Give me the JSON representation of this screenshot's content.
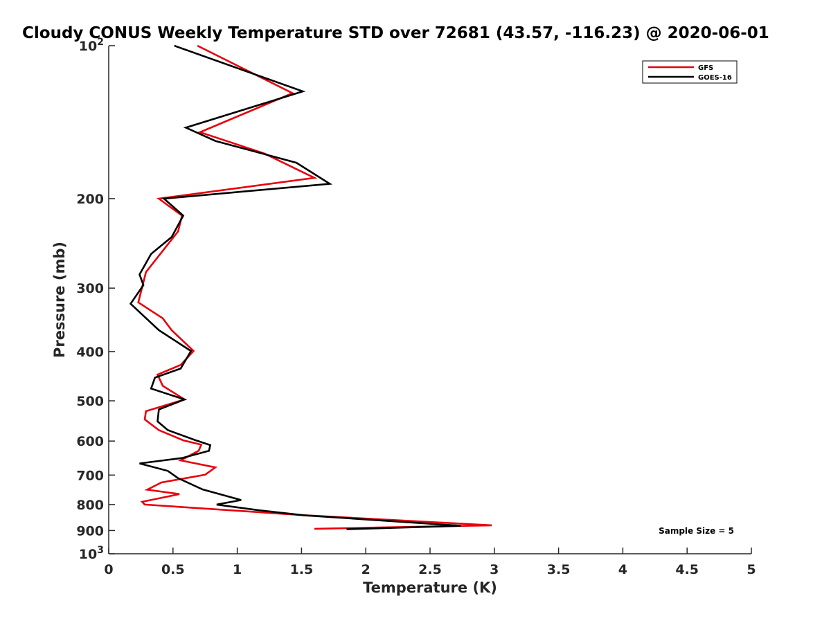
{
  "chart_data": {
    "type": "line",
    "title": "Cloudy CONUS Weekly Temperature STD over 72681 (43.57, -116.23) @ 2020-06-01",
    "xlabel": "Temperature (K)",
    "ylabel": "Pressure (mb)",
    "xlim": [
      0,
      5
    ],
    "ylim": [
      100,
      1000
    ],
    "y_scale": "log",
    "y_reversed": true,
    "x_ticks": [
      "0",
      "0.5",
      "1",
      "1.5",
      "2",
      "2.5",
      "3",
      "3.5",
      "4",
      "4.5",
      "5"
    ],
    "y_ticks": [
      {
        "value": 100,
        "base": "10",
        "exp": "2"
      },
      {
        "value": 200,
        "label": "200"
      },
      {
        "value": 300,
        "label": "300"
      },
      {
        "value": 400,
        "label": "400"
      },
      {
        "value": 500,
        "label": "500"
      },
      {
        "value": 600,
        "label": "600"
      },
      {
        "value": 700,
        "label": "700"
      },
      {
        "value": 800,
        "label": "800"
      },
      {
        "value": 900,
        "label": "900"
      },
      {
        "value": 1000,
        "base": "10",
        "exp": "3"
      }
    ],
    "grid": false,
    "legend_position": "top-right",
    "series": [
      {
        "name": "GFS",
        "color": "#e8000b",
        "points": [
          [
            0.69,
            100
          ],
          [
            1.43,
            124
          ],
          [
            0.71,
            148
          ],
          [
            1.21,
            163
          ],
          [
            1.6,
            182
          ],
          [
            0.39,
            200
          ],
          [
            0.57,
            216
          ],
          [
            0.54,
            232
          ],
          [
            0.39,
            259
          ],
          [
            0.29,
            279
          ],
          [
            0.23,
            320
          ],
          [
            0.42,
            344
          ],
          [
            0.49,
            363
          ],
          [
            0.66,
            399
          ],
          [
            0.56,
            425
          ],
          [
            0.38,
            444
          ],
          [
            0.42,
            467
          ],
          [
            0.59,
            497
          ],
          [
            0.29,
            524
          ],
          [
            0.28,
            544
          ],
          [
            0.39,
            571
          ],
          [
            0.58,
            598
          ],
          [
            0.72,
            610
          ],
          [
            0.7,
            627
          ],
          [
            0.56,
            655
          ],
          [
            0.83,
            676
          ],
          [
            0.75,
            699
          ],
          [
            0.41,
            724
          ],
          [
            0.3,
            748
          ],
          [
            0.55,
            763
          ],
          [
            0.26,
            790
          ],
          [
            0.28,
            800
          ],
          [
            1.53,
            840
          ],
          [
            2.98,
            879
          ],
          [
            1.6,
            893
          ]
        ]
      },
      {
        "name": "GOES-16",
        "color": "#000000",
        "points": [
          [
            0.51,
            100
          ],
          [
            1.51,
            123
          ],
          [
            0.6,
            145
          ],
          [
            0.83,
            154
          ],
          [
            1.46,
            170
          ],
          [
            1.72,
            187
          ],
          [
            0.43,
            200
          ],
          [
            0.58,
            216
          ],
          [
            0.49,
            238
          ],
          [
            0.33,
            257
          ],
          [
            0.24,
            282
          ],
          [
            0.27,
            296
          ],
          [
            0.17,
            322
          ],
          [
            0.39,
            363
          ],
          [
            0.64,
            399
          ],
          [
            0.56,
            432
          ],
          [
            0.36,
            450
          ],
          [
            0.33,
            473
          ],
          [
            0.59,
            497
          ],
          [
            0.39,
            520
          ],
          [
            0.38,
            549
          ],
          [
            0.46,
            571
          ],
          [
            0.67,
            597
          ],
          [
            0.79,
            611
          ],
          [
            0.78,
            627
          ],
          [
            0.57,
            648
          ],
          [
            0.24,
            664
          ],
          [
            0.46,
            687
          ],
          [
            0.54,
            710
          ],
          [
            0.73,
            747
          ],
          [
            1.03,
            784
          ],
          [
            0.84,
            800
          ],
          [
            1.15,
            820
          ],
          [
            1.52,
            840
          ],
          [
            2.74,
            881
          ],
          [
            1.85,
            895
          ]
        ]
      }
    ],
    "annotations": [
      "Sample Size = 5"
    ]
  }
}
